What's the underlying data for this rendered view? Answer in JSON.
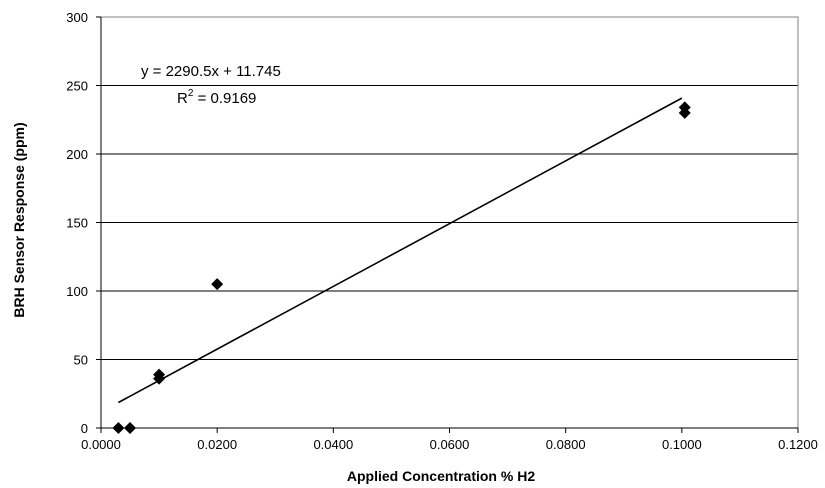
{
  "chart_data": {
    "type": "scatter",
    "title": "",
    "xlabel": "Applied Concentration % H2",
    "ylabel": "BRH Sensor Response (ppm)",
    "xlim": [
      0,
      0.12
    ],
    "ylim": [
      0,
      300
    ],
    "x_ticks": [
      "0.0000",
      "0.0200",
      "0.0400",
      "0.0600",
      "0.0800",
      "0.1000",
      "0.1200"
    ],
    "y_ticks": [
      "0",
      "50",
      "100",
      "150",
      "200",
      "250",
      "300"
    ],
    "grid": "horizontal",
    "legend": "none",
    "marker": "diamond",
    "series": [
      {
        "points": [
          {
            "x": 0.003,
            "y": 0
          },
          {
            "x": 0.005,
            "y": 0
          },
          {
            "x": 0.01,
            "y": 36
          },
          {
            "x": 0.01,
            "y": 39
          },
          {
            "x": 0.02,
            "y": 105
          },
          {
            "x": 0.1005,
            "y": 230
          },
          {
            "x": 0.1005,
            "y": 234
          }
        ]
      }
    ],
    "trendline": {
      "type": "linear",
      "slope": 2290.5,
      "intercept": 11.745,
      "x_range": [
        0.003,
        0.1
      ],
      "equation": "y = 2290.5x + 11.745",
      "r2_label": "R",
      "r2_sup": "2",
      "r2_value": " = 0.9169"
    },
    "colors": {
      "marker": "#000000",
      "trendline": "#000000",
      "gridline": "#000000",
      "plot_border": "#808080"
    }
  }
}
